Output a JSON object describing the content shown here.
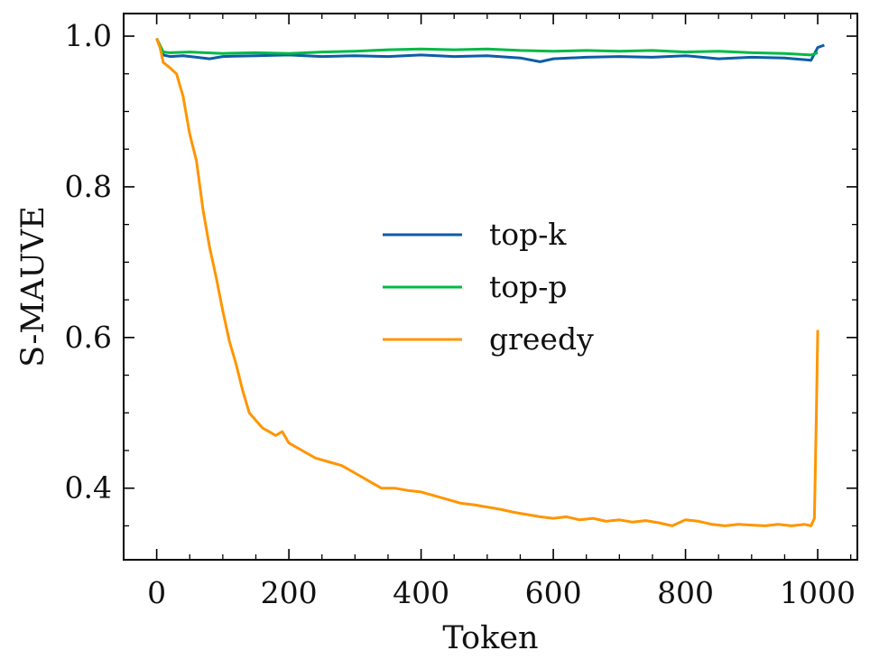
{
  "chart_data": {
    "type": "line",
    "title": "",
    "xlabel": "Token",
    "ylabel": "S-MAUVE",
    "xlim": [
      -50,
      1060
    ],
    "ylim": [
      0.305,
      1.03
    ],
    "xticks": [
      0,
      200,
      400,
      600,
      800,
      1000
    ],
    "xtick_labels": [
      "0",
      "200",
      "400",
      "600",
      "800",
      "1000"
    ],
    "yticks": [
      0.4,
      0.6,
      0.8,
      1.0
    ],
    "ytick_labels": [
      "0.4",
      "0.6",
      "0.8",
      "1.0"
    ],
    "grid": false,
    "legend_position": "center-right",
    "series": [
      {
        "name": "top-k",
        "color": "#0C5DA5",
        "x": [
          0,
          10,
          20,
          40,
          60,
          80,
          100,
          150,
          200,
          250,
          300,
          350,
          400,
          450,
          500,
          550,
          580,
          600,
          650,
          700,
          750,
          800,
          850,
          900,
          950,
          990,
          1000,
          1010
        ],
        "y": [
          0.997,
          0.975,
          0.973,
          0.974,
          0.972,
          0.97,
          0.973,
          0.974,
          0.975,
          0.973,
          0.974,
          0.973,
          0.975,
          0.973,
          0.974,
          0.971,
          0.966,
          0.97,
          0.972,
          0.973,
          0.972,
          0.974,
          0.97,
          0.972,
          0.971,
          0.968,
          0.985,
          0.988
        ]
      },
      {
        "name": "top-p",
        "color": "#00B945",
        "x": [
          0,
          10,
          20,
          50,
          100,
          150,
          200,
          250,
          300,
          350,
          400,
          450,
          500,
          550,
          600,
          650,
          700,
          750,
          800,
          850,
          900,
          950,
          990,
          1000
        ],
        "y": [
          0.997,
          0.979,
          0.978,
          0.979,
          0.977,
          0.978,
          0.977,
          0.979,
          0.98,
          0.982,
          0.983,
          0.982,
          0.983,
          0.981,
          0.98,
          0.981,
          0.98,
          0.981,
          0.979,
          0.98,
          0.978,
          0.977,
          0.975,
          0.978
        ]
      },
      {
        "name": "greedy",
        "color": "#FF9500",
        "x": [
          0,
          5,
          10,
          20,
          30,
          40,
          50,
          60,
          70,
          80,
          90,
          100,
          110,
          120,
          130,
          140,
          150,
          160,
          170,
          180,
          190,
          200,
          220,
          240,
          260,
          280,
          300,
          320,
          340,
          360,
          380,
          400,
          420,
          440,
          460,
          480,
          500,
          520,
          540,
          560,
          580,
          600,
          620,
          640,
          660,
          680,
          700,
          720,
          740,
          760,
          780,
          800,
          820,
          840,
          860,
          880,
          900,
          920,
          940,
          960,
          980,
          990,
          995,
          998,
          1000
        ],
        "y": [
          0.997,
          0.985,
          0.965,
          0.958,
          0.95,
          0.92,
          0.87,
          0.835,
          0.77,
          0.72,
          0.68,
          0.635,
          0.595,
          0.565,
          0.53,
          0.5,
          0.49,
          0.48,
          0.475,
          0.47,
          0.475,
          0.46,
          0.45,
          0.44,
          0.435,
          0.43,
          0.42,
          0.41,
          0.4,
          0.4,
          0.397,
          0.395,
          0.39,
          0.385,
          0.38,
          0.378,
          0.375,
          0.372,
          0.368,
          0.365,
          0.362,
          0.36,
          0.362,
          0.358,
          0.36,
          0.356,
          0.358,
          0.355,
          0.357,
          0.354,
          0.35,
          0.358,
          0.356,
          0.352,
          0.35,
          0.352,
          0.351,
          0.35,
          0.352,
          0.35,
          0.352,
          0.35,
          0.36,
          0.5,
          0.61
        ]
      }
    ]
  }
}
